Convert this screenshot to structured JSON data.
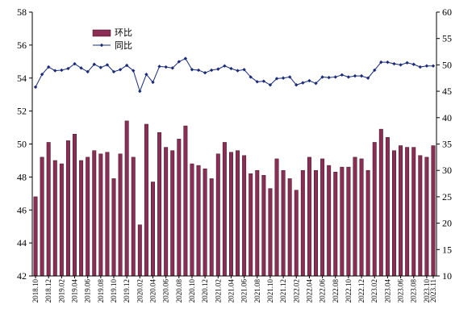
{
  "chart_data": {
    "type": "bar",
    "title": "",
    "xlabel": "",
    "ylabel_left": "",
    "ylabel_right": "",
    "legend_position": "top-left",
    "grid": false,
    "left_axis": {
      "ylim": [
        42,
        58
      ],
      "ticks": [
        42,
        44,
        46,
        48,
        50,
        52,
        54,
        56,
        58
      ]
    },
    "right_axis": {
      "ylim": [
        10,
        60
      ],
      "ticks": [
        10,
        15,
        20,
        25,
        30,
        35,
        40,
        45,
        50,
        55,
        60
      ]
    },
    "categories": [
      "2018.10",
      "2018.11",
      "2018.12",
      "2019.01",
      "2019.02",
      "2019.03",
      "2019.04",
      "2019.05",
      "2019.06",
      "2019.07",
      "2019.08",
      "2019.09",
      "2019.10",
      "2019.11",
      "2019.12",
      "2020.01",
      "2020.02",
      "2020.03",
      "2020.04",
      "2020.05",
      "2020.06",
      "2020.07",
      "2020.08",
      "2020.09",
      "2020.10",
      "2020.11",
      "2020.12",
      "2021.01",
      "2021.02",
      "2021.03",
      "2021.04",
      "2021.05",
      "2021.06",
      "2021.07",
      "2021.08",
      "2021.09",
      "2021.10",
      "2021.11",
      "2021.12",
      "2022.01",
      "2022.02",
      "2022.03",
      "2022.04",
      "2022.05",
      "2022.06",
      "2022.07",
      "2022.08",
      "2022.09",
      "2022.10",
      "2022.11",
      "2022.12",
      "2023.01",
      "2023.02",
      "2023.03",
      "2023.04",
      "2023.05",
      "2023.06",
      "2023.07",
      "2023.08",
      "2023.09",
      "2023.10",
      "2023.11"
    ],
    "x_tick_labels": [
      "2018.10",
      "2018.12",
      "2019.02",
      "2019.04",
      "2019.06",
      "2019.08",
      "2019.10",
      "2019.12",
      "2020.02",
      "2020.04",
      "2020.06",
      "2020.08",
      "2020.10",
      "2020.12",
      "2021.02",
      "2021.04",
      "2021.06",
      "2021.08",
      "2021.10",
      "2021.12",
      "2022.02",
      "2022.04",
      "2022.06",
      "2022.08",
      "2022.10",
      "2022.12",
      "2023.02",
      "2023.04",
      "2023.06",
      "2023.08",
      "2023.10",
      "2023.11"
    ],
    "series": [
      {
        "name": "环比",
        "axis": "left",
        "type": "bar",
        "color": "#8B2E55",
        "values": [
          46.8,
          49.2,
          50.1,
          49.0,
          48.8,
          50.2,
          50.6,
          49.0,
          49.2,
          49.6,
          49.4,
          49.5,
          47.9,
          49.4,
          51.4,
          49.2,
          45.1,
          51.2,
          47.7,
          50.7,
          49.8,
          49.6,
          50.3,
          51.1,
          48.8,
          48.7,
          48.5,
          47.9,
          49.4,
          50.1,
          49.5,
          49.6,
          49.3,
          48.2,
          48.4,
          48.1,
          47.3,
          49.1,
          48.4,
          47.9,
          47.2,
          48.4,
          49.2,
          48.4,
          49.1,
          48.7,
          48.3,
          48.6,
          48.6,
          49.2,
          49.1,
          48.4,
          50.1,
          50.9,
          50.4,
          49.6,
          49.9,
          49.8,
          49.8,
          49.3,
          49.2,
          49.9
        ]
      },
      {
        "name": "同比",
        "axis": "right",
        "type": "line",
        "color": "#1A2B7A",
        "values": [
          45.8,
          48.2,
          49.6,
          48.9,
          49.0,
          49.3,
          50.2,
          49.4,
          48.7,
          50.1,
          49.5,
          50.0,
          48.7,
          49.1,
          49.9,
          48.9,
          45.0,
          48.2,
          46.7,
          49.7,
          49.6,
          49.4,
          50.6,
          51.2,
          49.1,
          49.0,
          48.5,
          49.0,
          49.2,
          49.8,
          49.3,
          48.9,
          49.1,
          47.7,
          46.8,
          46.9,
          46.2,
          47.4,
          47.5,
          47.7,
          46.2,
          46.6,
          47.0,
          46.5,
          47.7,
          47.6,
          47.7,
          48.1,
          47.7,
          47.9,
          47.9,
          47.5,
          49.0,
          50.5,
          50.5,
          50.2,
          50.0,
          50.4,
          50.1,
          49.6,
          49.8,
          49.8
        ]
      }
    ]
  }
}
